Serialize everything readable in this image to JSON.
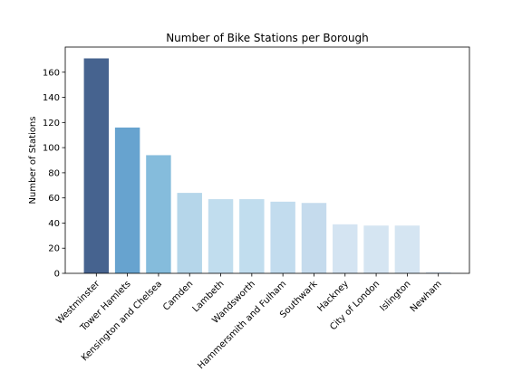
{
  "chart_data": {
    "type": "bar",
    "title": "Number of Bike Stations per Borough",
    "xlabel": "",
    "ylabel": "Number of Stations",
    "categories": [
      "Westminster",
      "Tower Hamlets",
      "Kensington and Chelsea",
      "Camden",
      "Lambeth",
      "Wandsworth",
      "Hammersmith and Fulham",
      "Southwark",
      "Hackney",
      "City of London",
      "Islington",
      "Newham"
    ],
    "values": [
      171,
      116,
      94,
      64,
      59,
      59,
      57,
      56,
      39,
      38,
      38,
      1
    ],
    "colors": [
      "#46638f",
      "#67a3cf",
      "#85bcdc",
      "#b5d6ea",
      "#c1ddee",
      "#c1ddee",
      "#c2dcee",
      "#c5dbed",
      "#d4e4f2",
      "#d5e5f2",
      "#d5e5f2",
      "#d9e6f3"
    ],
    "ylim": [
      0,
      180
    ],
    "yticks": [
      0,
      20,
      40,
      60,
      80,
      100,
      120,
      140,
      160
    ],
    "grid": false,
    "legend": false
  }
}
